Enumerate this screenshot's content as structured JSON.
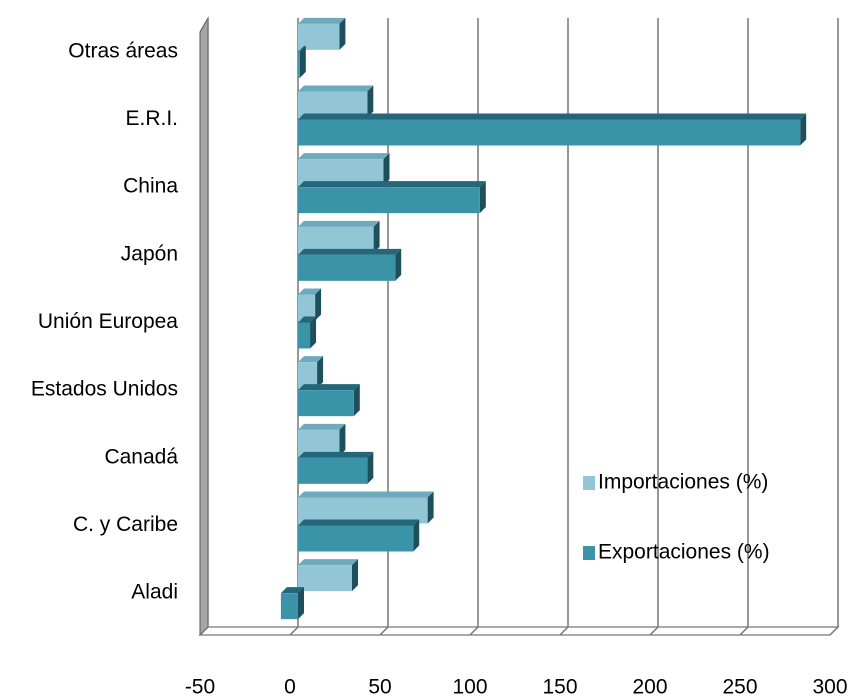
{
  "chart_data": {
    "type": "bar",
    "orientation": "horizontal",
    "categories": [
      "Aladi",
      "C. y Caribe",
      "Canadá",
      "Estados Unidos",
      "Unión Europea",
      "Japón",
      "China",
      "E.R.I.",
      "Otras áreas"
    ],
    "series": [
      {
        "name": "Importaciones (%)",
        "color": "#92c5d6",
        "values": [
          30,
          72,
          23,
          10.6,
          9.5,
          42,
          47.5,
          38.5,
          23
        ]
      },
      {
        "name": "Exportaciones (%)",
        "color": "#3b93a8",
        "values": [
          -9.5,
          64,
          38.5,
          31,
          6.7,
          54,
          101,
          279,
          1
        ]
      }
    ],
    "xlim": [
      -50,
      300
    ],
    "xticks": [
      -50,
      0,
      50,
      100,
      150,
      200,
      250,
      300
    ],
    "grid": true,
    "legend": "lower right"
  }
}
